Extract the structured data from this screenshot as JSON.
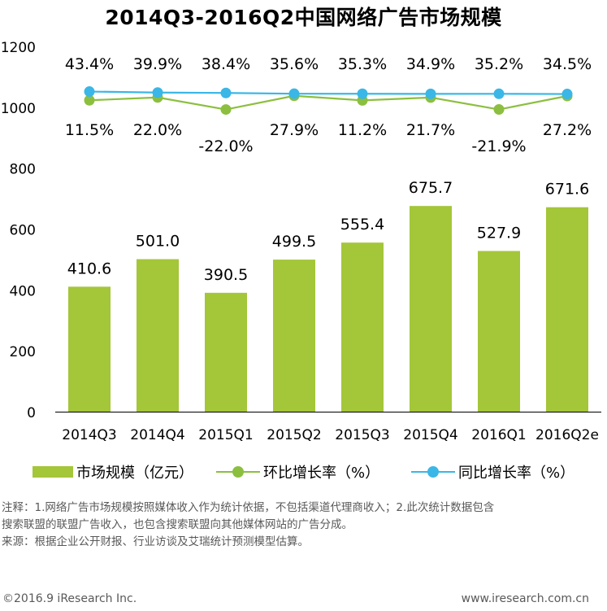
{
  "title": "2014Q3-2016Q2中国网络广告市场规模",
  "chart_data": {
    "type": "bar",
    "categories": [
      "2014Q3",
      "2014Q4",
      "2015Q1",
      "2015Q2",
      "2015Q3",
      "2015Q4",
      "2016Q1",
      "2016Q2e"
    ],
    "ylim": [
      0,
      1200
    ],
    "yticks": [
      0,
      200,
      400,
      600,
      800,
      1000,
      1200
    ],
    "grid": false,
    "legend_position": "bottom",
    "series": [
      {
        "name": "市场规模（亿元）",
        "type": "bar",
        "color": "#a4c639",
        "values": [
          410.6,
          501.0,
          390.5,
          499.5,
          555.4,
          675.7,
          527.9,
          671.6
        ],
        "labels": [
          "410.6",
          "501.0",
          "390.5",
          "499.5",
          "555.4",
          "675.7",
          "527.9",
          "671.6"
        ]
      },
      {
        "name": "环比增长率（%）",
        "type": "line",
        "color": "#8cbf3f",
        "values": [
          11.5,
          22.0,
          -22.0,
          27.9,
          11.2,
          21.7,
          -21.9,
          27.2
        ],
        "labels": [
          "11.5%",
          "22.0%",
          "-22.0%",
          "27.9%",
          "11.2%",
          "21.7%",
          "-21.9%",
          "27.2%"
        ]
      },
      {
        "name": "同比增长率（%）",
        "type": "line",
        "color": "#3ab7e6",
        "values": [
          43.4,
          39.9,
          38.4,
          35.6,
          35.3,
          34.9,
          35.2,
          34.5
        ],
        "labels": [
          "43.4%",
          "39.9%",
          "38.4%",
          "35.6%",
          "35.3%",
          "34.9%",
          "35.2%",
          "34.5%"
        ]
      }
    ]
  },
  "notes": [
    "注释：1.网络广告市场规模按照媒体收入作为统计依据，不包括渠道代理商收入；2.此次统计数据包含",
    "搜索联盟的联盟广告收入，也包含搜索联盟向其他媒体网站的广告分成。",
    "来源：根据企业公开财报、行业访谈及艾瑞统计预测模型估算。"
  ],
  "footer": {
    "left": "©2016.9 iResearch Inc.",
    "right": "www.iresearch.com.cn"
  }
}
